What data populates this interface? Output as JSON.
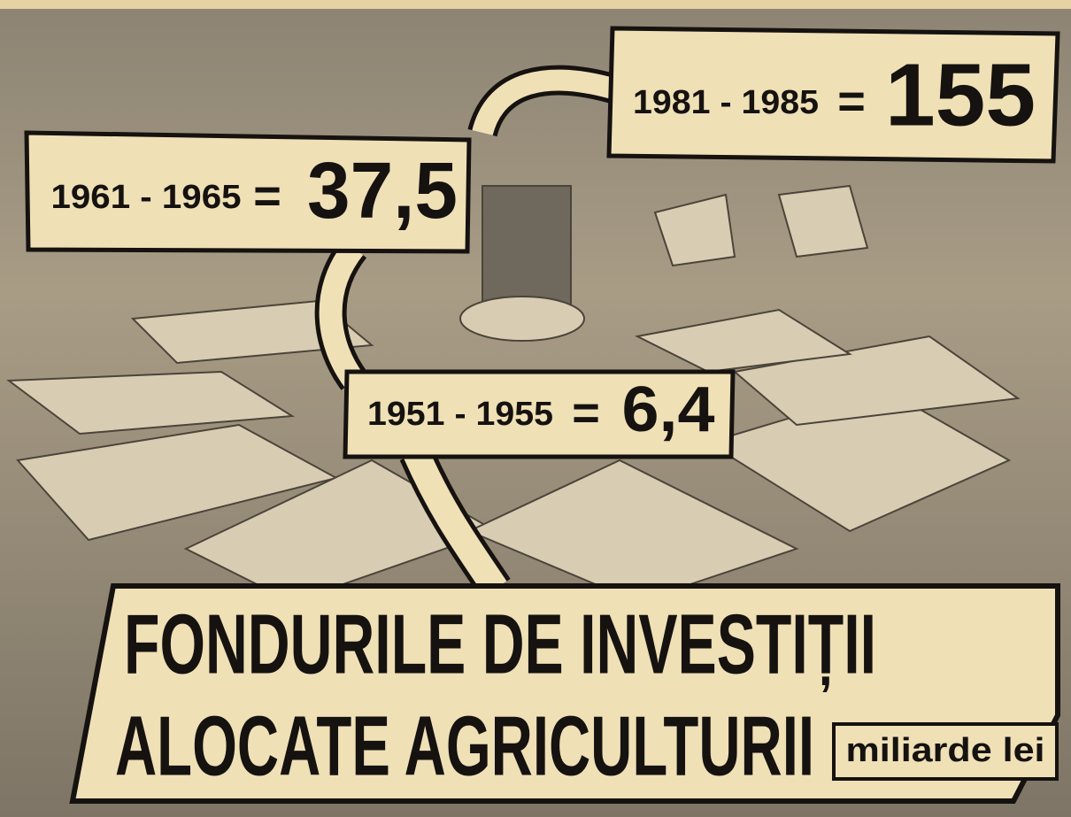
{
  "callouts": [
    {
      "period": "1981 - 1985",
      "equals": "=",
      "value": "155"
    },
    {
      "period": "1961 - 1965",
      "equals": "=",
      "value": "37,5"
    },
    {
      "period": "1951 - 1955",
      "equals": "=",
      "value": "6,4"
    }
  ],
  "title": {
    "line1": "FONDURILE DE INVESTIȚII",
    "line2": "ALOCATE AGRICULTURII"
  },
  "unit": "miliarde lei"
}
